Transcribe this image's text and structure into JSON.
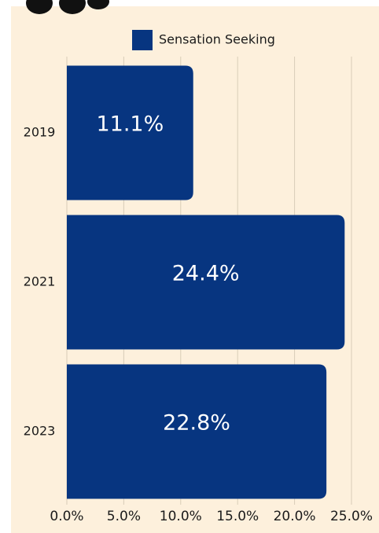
{
  "chart_data": {
    "type": "bar",
    "orientation": "horizontal",
    "categories": [
      "2019",
      "2021",
      "2023"
    ],
    "series": [
      {
        "name": "Sensation Seeking",
        "color": "#073580",
        "values": [
          11.1,
          24.4,
          22.8
        ],
        "value_labels": [
          "11.1%",
          "24.4%",
          "22.8%"
        ]
      }
    ],
    "xlim": [
      0,
      25
    ],
    "xticks": [
      {
        "value": 0,
        "label": "0.0%"
      },
      {
        "value": 5,
        "label": "5.0%"
      },
      {
        "value": 10,
        "label": "10.0%"
      },
      {
        "value": 15,
        "label": "15.0%"
      },
      {
        "value": 20,
        "label": "20.0%"
      },
      {
        "value": 25,
        "label": "25.0%"
      }
    ],
    "grid": true,
    "legend": "top"
  }
}
